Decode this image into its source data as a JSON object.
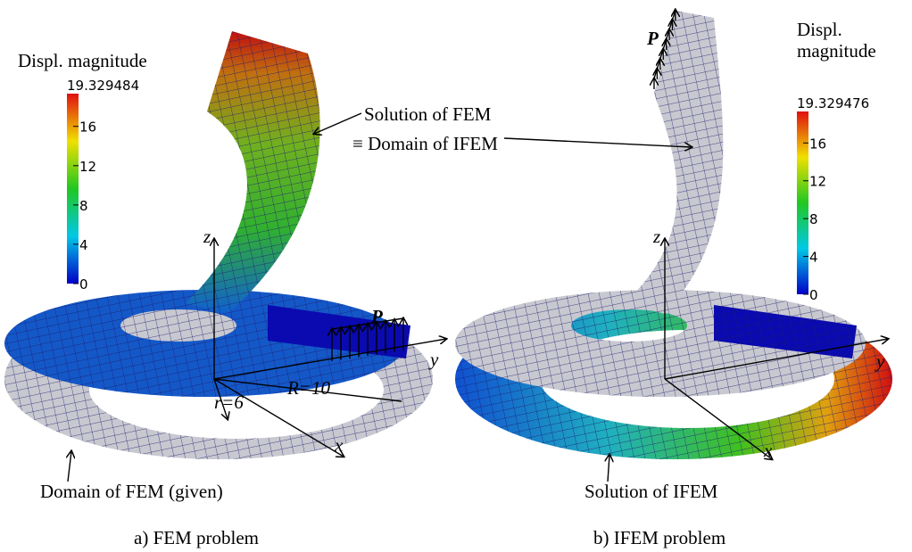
{
  "panels": [
    {
      "colorbar": {
        "title_lines": [
          "Displ. magnitude"
        ],
        "max": "19.329484",
        "ticks": [
          "16",
          "12",
          "8",
          "4",
          "0"
        ]
      },
      "annotations": {
        "solution": "Solution of FEM",
        "solution_equiv": "≡ Domain of IFEM",
        "domain": "Domain of FEM (given)",
        "load": "P",
        "axis_z": "z",
        "axis_y": "y",
        "axis_x": "x",
        "inner_radius": "r=6",
        "outer_radius": "R=10"
      },
      "caption": "a) FEM problem"
    },
    {
      "colorbar": {
        "title_lines": [
          "Displ.",
          "magnitude"
        ],
        "max": "19.329476",
        "ticks": [
          "16",
          "12",
          "8",
          "4",
          "0"
        ]
      },
      "annotations": {
        "solution": "Solution of IFEM",
        "load": "P",
        "axis_z": "z",
        "axis_y": "y",
        "axis_x": "x"
      },
      "caption": "b) IFEM problem"
    }
  ]
}
